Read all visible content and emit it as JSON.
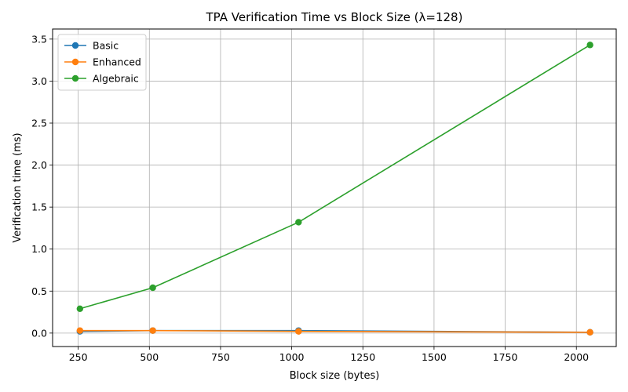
{
  "chart_data": {
    "type": "line",
    "title": "TPA Verification Time vs Block Size (λ=128)",
    "xlabel": "Block size (bytes)",
    "ylabel": "Verification time (ms)",
    "xlim": [
      160,
      2140
    ],
    "ylim": [
      -0.16,
      3.62
    ],
    "x_ticks": [
      250,
      500,
      750,
      1000,
      1250,
      1500,
      1750,
      2000
    ],
    "x_tick_labels": [
      "250",
      "500",
      "750",
      "1000",
      "1250",
      "1500",
      "1750",
      "2000"
    ],
    "y_ticks": [
      0.0,
      0.5,
      1.0,
      1.5,
      2.0,
      2.5,
      3.0,
      3.5
    ],
    "y_tick_labels": [
      "0.0",
      "0.5",
      "1.0",
      "1.5",
      "2.0",
      "2.5",
      "3.0",
      "3.5"
    ],
    "grid": true,
    "legend_position": "top-left",
    "x": [
      256,
      512,
      1024,
      2048
    ],
    "series": [
      {
        "name": "Basic",
        "color": "#1f77b4",
        "values": [
          0.02,
          0.03,
          0.03,
          0.01
        ]
      },
      {
        "name": "Enhanced",
        "color": "#ff7f0e",
        "values": [
          0.03,
          0.03,
          0.02,
          0.01
        ]
      },
      {
        "name": "Algebraic",
        "color": "#2ca02c",
        "values": [
          0.29,
          0.54,
          1.32,
          3.43
        ]
      }
    ]
  }
}
